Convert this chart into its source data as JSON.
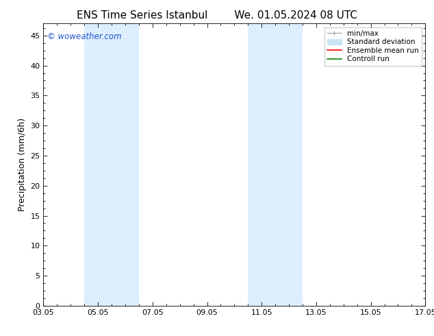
{
  "title_left": "ENS Time Series Istanbul",
  "title_right": "We. 01.05.2024 08 UTC",
  "ylabel": "Precipitation (mm/6h)",
  "ylim": [
    0,
    47
  ],
  "yticks": [
    0,
    5,
    10,
    15,
    20,
    25,
    30,
    35,
    40,
    45
  ],
  "xtick_labels": [
    "03.05",
    "05.05",
    "07.05",
    "09.05",
    "11.05",
    "13.05",
    "15.05",
    "17.05"
  ],
  "xtick_positions": [
    0,
    2,
    4,
    6,
    8,
    10,
    12,
    14
  ],
  "xlim": [
    0,
    14
  ],
  "shaded_bands": [
    {
      "xmin": 1.5,
      "xmax": 3.5
    },
    {
      "xmin": 7.5,
      "xmax": 9.5
    }
  ],
  "shaded_color": "#ddeeff",
  "watermark_text": "© woweather.com",
  "watermark_color": "#2255cc",
  "bg_color": "#ffffff",
  "plot_bg_color": "#ffffff",
  "title_fontsize": 11,
  "label_fontsize": 9,
  "tick_fontsize": 8,
  "legend_fontsize": 7.5,
  "minmax_color": "#aaaaaa",
  "std_color": "#cce5f5",
  "ens_color": "#ff0000",
  "ctrl_color": "#008800"
}
